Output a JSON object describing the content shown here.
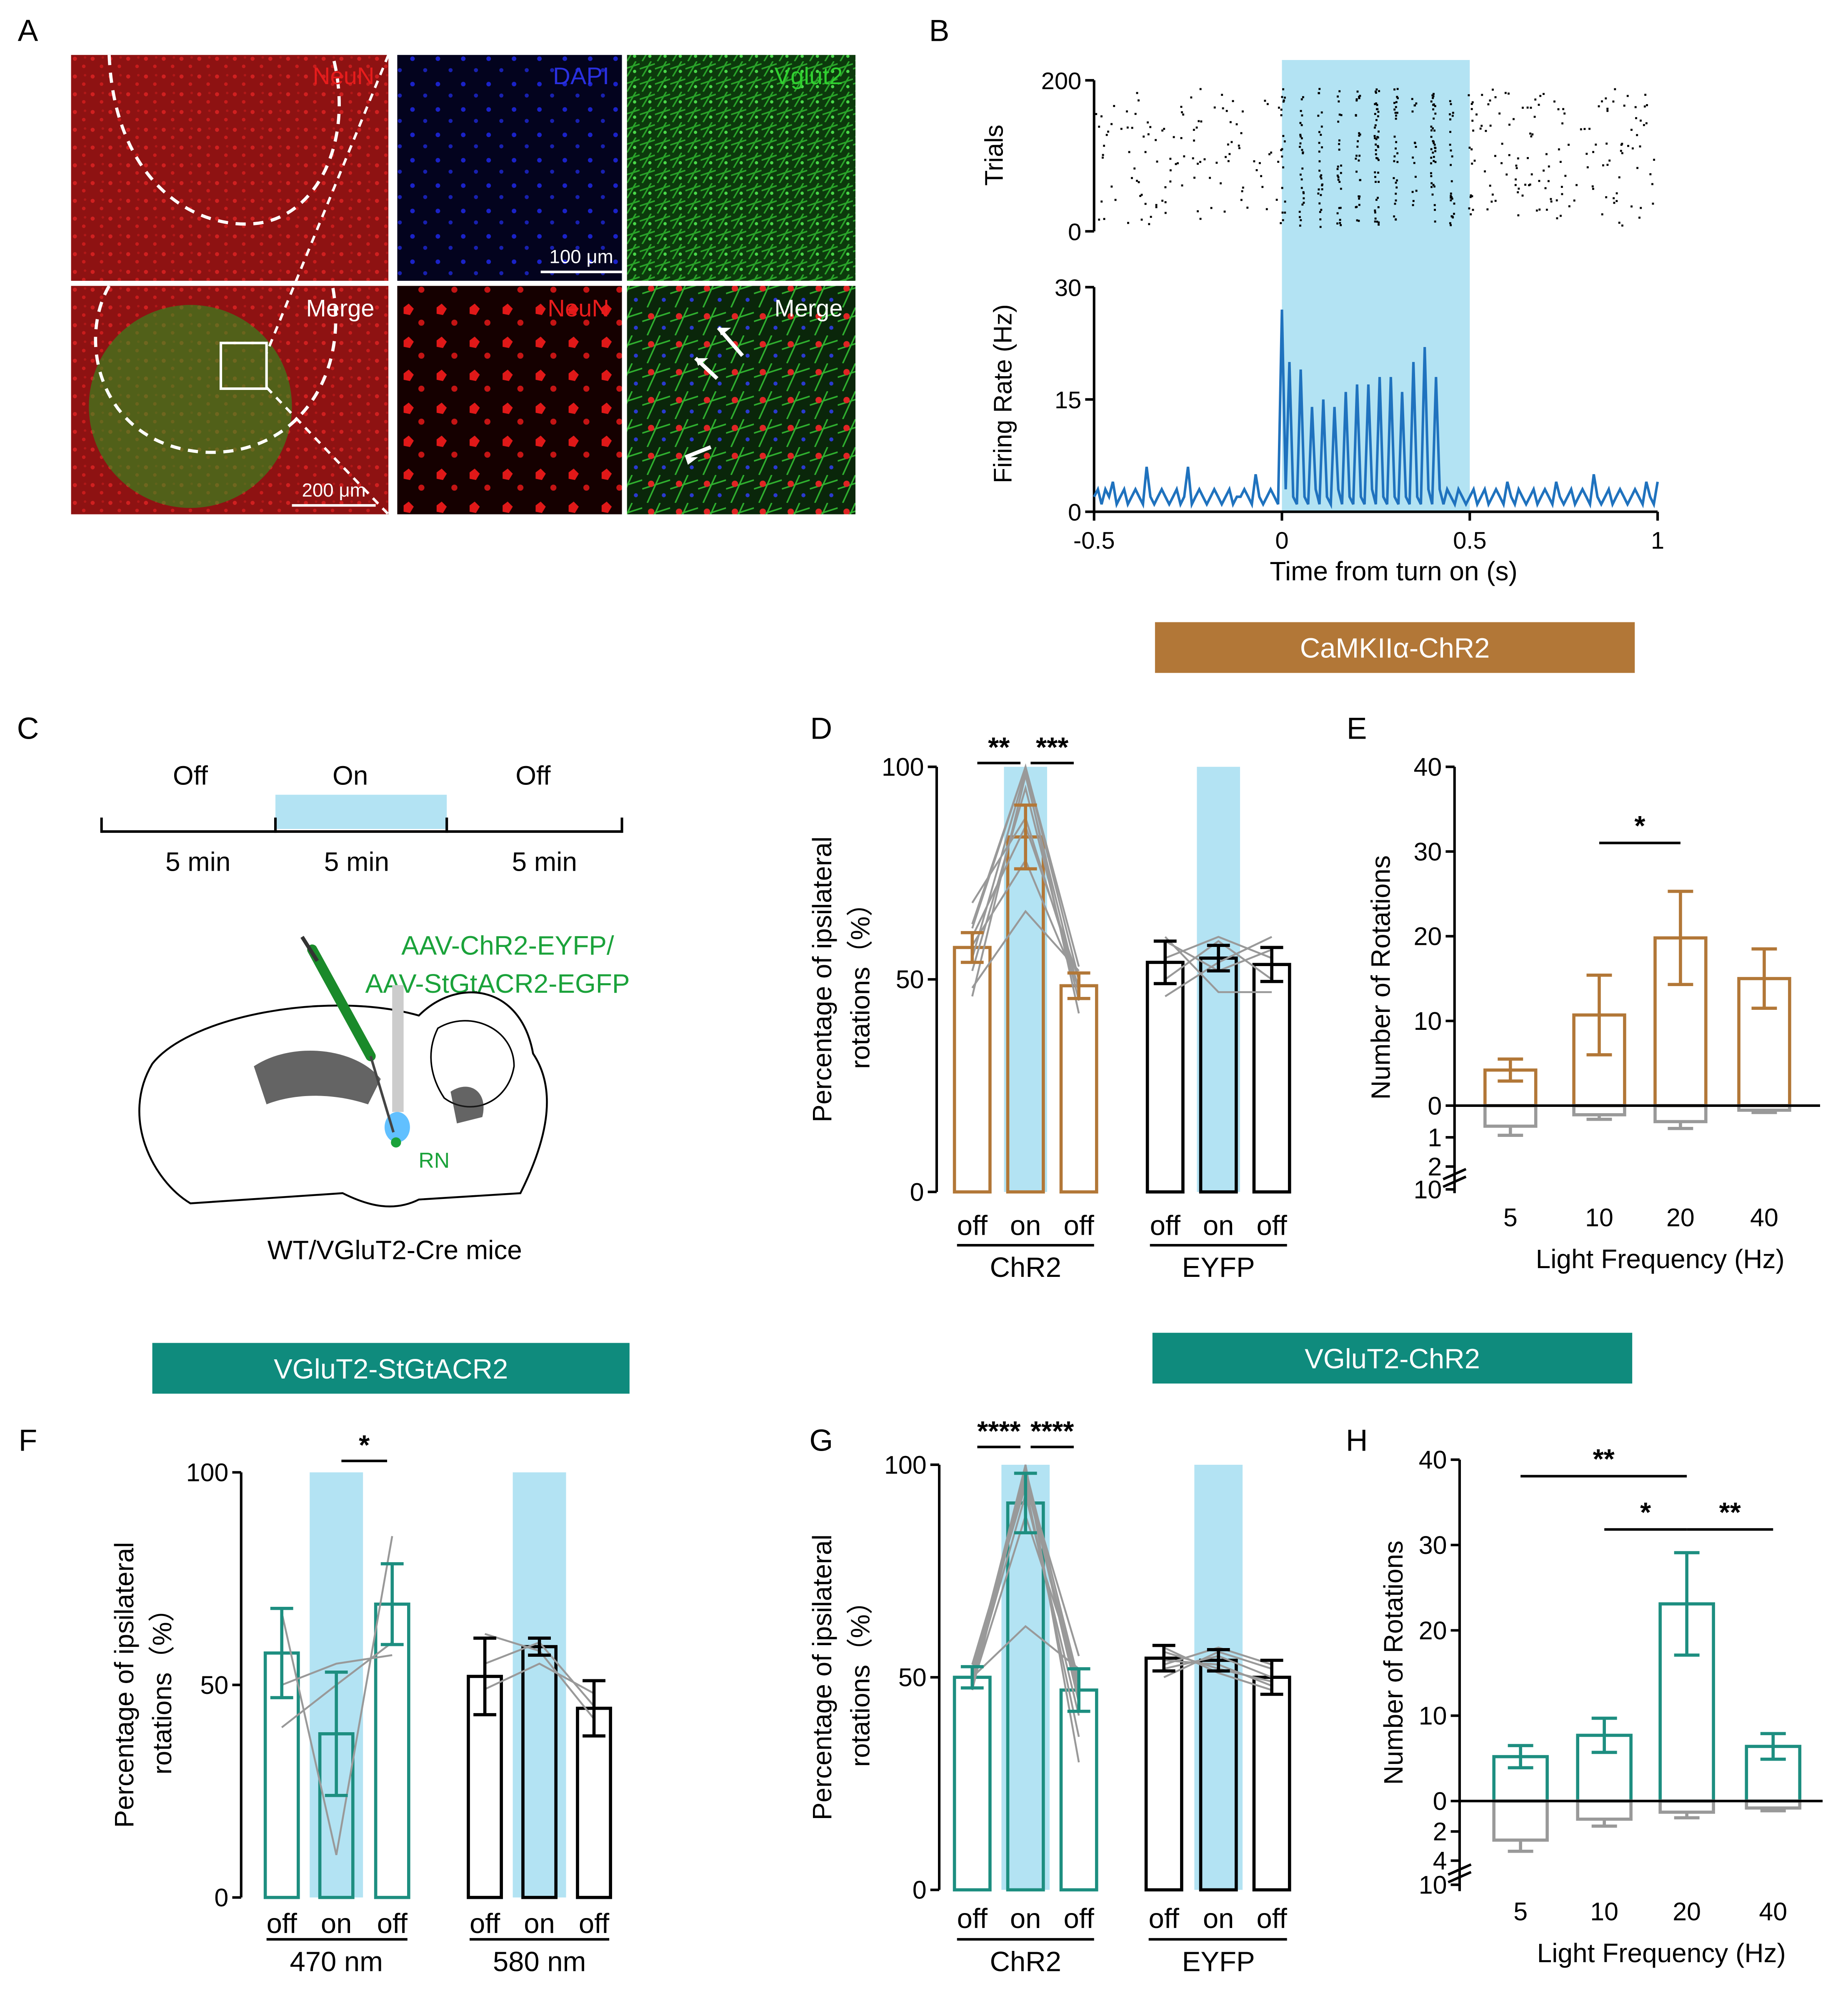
{
  "panel_letters": [
    "A",
    "B",
    "C",
    "D",
    "E",
    "F",
    "G",
    "H"
  ],
  "colors": {
    "brown": "#b27737",
    "teal": "#1d8e80",
    "grey": "#999999",
    "black": "#000000",
    "light_blue": "#b3e3f3",
    "trace_blue": "#1f72be",
    "banner_brown": "#b27737",
    "banner_teal": "#0f8b7d",
    "green_text": "#1aa23a",
    "arrow_white": "#ffffff"
  },
  "panel_a": {
    "labels": {
      "neun": "NeuN",
      "dapi": "DAPI",
      "vglut2": "Vglut2",
      "merge": "Merge"
    },
    "scale_bar_200": "200 μm",
    "scale_bar_100": "100 μm"
  },
  "banners": {
    "camkii": "CaMKIIα-ChR2",
    "vglut2_stgtacr2": "VGluT2-StGtACR2",
    "vglut2_chr2": "VGluT2-ChR2"
  },
  "panel_c": {
    "phases": [
      "Off",
      "On",
      "Off"
    ],
    "durations": [
      "5 min",
      "5 min",
      "5 min"
    ],
    "virus_line1": "AAV-ChR2-EYFP/",
    "virus_line2": "AAV-StGtACR2-EGFP",
    "region": "RN",
    "mice": "WT/VGluT2-Cre mice"
  },
  "chart_data": [
    {
      "panel": "B",
      "type": "line",
      "raster": {
        "ylabel": "Trials",
        "yticks": [
          "0",
          "200"
        ],
        "ylim": [
          0,
          200
        ]
      },
      "ylabel": "Firing Rate (Hz)",
      "xlabel": "Time from turn on (s)",
      "xticks": [
        "-0.5",
        "0",
        "0.5",
        "1"
      ],
      "yticks": [
        "0",
        "15",
        "30"
      ],
      "xlim": [
        -0.5,
        1.0
      ],
      "ylim": [
        0,
        30
      ],
      "light_on": [
        0,
        0.5
      ],
      "x": [
        -0.5,
        -0.49,
        -0.48,
        -0.47,
        -0.46,
        -0.45,
        -0.44,
        -0.43,
        -0.42,
        -0.41,
        -0.4,
        -0.39,
        -0.38,
        -0.37,
        -0.36,
        -0.35,
        -0.34,
        -0.33,
        -0.32,
        -0.31,
        -0.3,
        -0.29,
        -0.28,
        -0.27,
        -0.26,
        -0.25,
        -0.24,
        -0.23,
        -0.22,
        -0.21,
        -0.2,
        -0.19,
        -0.18,
        -0.17,
        -0.16,
        -0.15,
        -0.14,
        -0.13,
        -0.12,
        -0.11,
        -0.1,
        -0.09,
        -0.08,
        -0.07,
        -0.06,
        -0.05,
        -0.04,
        -0.03,
        -0.02,
        -0.01,
        0.0,
        0.01,
        0.02,
        0.03,
        0.04,
        0.05,
        0.06,
        0.07,
        0.08,
        0.09,
        0.1,
        0.11,
        0.12,
        0.13,
        0.14,
        0.15,
        0.16,
        0.17,
        0.18,
        0.19,
        0.2,
        0.21,
        0.22,
        0.23,
        0.24,
        0.25,
        0.26,
        0.27,
        0.28,
        0.29,
        0.3,
        0.31,
        0.32,
        0.33,
        0.34,
        0.35,
        0.36,
        0.37,
        0.38,
        0.39,
        0.4,
        0.41,
        0.42,
        0.43,
        0.44,
        0.45,
        0.46,
        0.47,
        0.48,
        0.49,
        0.5,
        0.51,
        0.52,
        0.53,
        0.54,
        0.55,
        0.56,
        0.57,
        0.58,
        0.59,
        0.6,
        0.61,
        0.62,
        0.63,
        0.64,
        0.65,
        0.66,
        0.67,
        0.68,
        0.69,
        0.7,
        0.71,
        0.72,
        0.73,
        0.74,
        0.75,
        0.76,
        0.77,
        0.78,
        0.79,
        0.8,
        0.81,
        0.82,
        0.83,
        0.84,
        0.85,
        0.86,
        0.87,
        0.88,
        0.89,
        0.9,
        0.91,
        0.92,
        0.93,
        0.94,
        0.95,
        0.96,
        0.97,
        0.98,
        0.99,
        1.0
      ],
      "y": [
        2,
        3,
        1,
        3,
        2,
        4,
        1,
        2,
        3,
        1,
        2,
        3,
        2,
        1,
        6,
        2,
        1,
        2,
        3,
        2,
        1,
        2,
        3,
        1,
        2,
        6,
        1,
        2,
        3,
        2,
        1,
        2,
        3,
        2,
        1,
        2,
        3,
        1,
        2,
        2,
        3,
        2,
        1,
        5,
        2,
        1,
        2,
        3,
        2,
        1,
        27,
        3,
        20,
        2,
        1,
        19,
        2,
        1,
        14,
        3,
        1,
        15,
        2,
        1,
        14,
        3,
        1,
        16,
        2,
        1,
        17,
        2,
        1,
        17,
        3,
        1,
        18,
        2,
        1,
        18,
        2,
        1,
        16,
        2,
        1,
        20,
        2,
        1,
        22,
        3,
        1,
        18,
        3,
        1,
        3,
        2,
        1,
        3,
        2,
        1,
        2,
        3,
        1,
        2,
        3,
        1,
        2,
        3,
        2,
        1,
        4,
        2,
        1,
        3,
        2,
        1,
        2,
        3,
        1,
        2,
        3,
        2,
        1,
        4,
        2,
        1,
        2,
        3,
        1,
        2,
        3,
        2,
        1,
        5,
        2,
        1,
        2,
        3,
        1,
        2,
        3,
        2,
        1,
        2,
        3,
        2,
        1,
        4,
        2,
        1,
        4
      ]
    },
    {
      "panel": "D",
      "type": "bar",
      "ylabel_line1": "Percentage of ipsilateral",
      "ylabel_line2": "rotations（%）",
      "yticks": [
        "0",
        "50",
        "100"
      ],
      "ylim": [
        0,
        100
      ],
      "categories": [
        "off",
        "on",
        "off",
        "off",
        "on",
        "off"
      ],
      "groups": [
        "ChR2",
        "EYFP"
      ],
      "values": [
        57.5,
        83.5,
        48.5,
        54,
        55,
        53.5
      ],
      "errors": [
        3.5,
        7.5,
        3,
        5,
        3,
        4
      ],
      "series_colors": [
        "brown",
        "brown",
        "brown",
        "black",
        "black",
        "black"
      ],
      "light_on": [
        1,
        4
      ],
      "individual_lines": [
        [
          52,
          62,
          68,
          48,
          55,
          58,
          63,
          60,
          46
        ],
        [
          95,
          100,
          88,
          66,
          99,
          78,
          100,
          86,
          98
        ],
        [
          45,
          50,
          48,
          52,
          42,
          48,
          53,
          50,
          47
        ]
      ],
      "individual_lines_eyfp": [
        [
          59,
          50,
          46,
          60,
          55
        ],
        [
          52,
          59,
          54,
          47,
          60
        ],
        [
          57,
          50,
          60,
          47,
          55
        ]
      ],
      "significance": [
        {
          "from": 0,
          "to": 1,
          "label": "**"
        },
        {
          "from": 1,
          "to": 2,
          "label": "***"
        }
      ]
    },
    {
      "panel": "E",
      "type": "bar",
      "ylabel": "Number of Rotations",
      "xlabel": "Light Frequency (Hz)",
      "categories": [
        "5",
        "10",
        "20",
        "40"
      ],
      "yticks_top": [
        "0",
        "10",
        "20",
        "30",
        "40"
      ],
      "yticks_bottom": [
        "1",
        "2",
        "10"
      ],
      "ylim": [
        0,
        40
      ],
      "series": [
        {
          "color": "brown",
          "values": [
            4.2,
            10.7,
            19.8,
            15
          ],
          "errors": [
            1.3,
            4.7,
            5.5,
            3.5
          ]
        },
        {
          "color": "grey",
          "values": [
            0.9,
            0.4,
            0.7,
            0.2
          ],
          "errors": [
            0.4,
            0.2,
            0.3,
            0.1
          ]
        }
      ],
      "significance": [
        {
          "from": 1,
          "to": 2,
          "label": "*"
        }
      ]
    },
    {
      "panel": "F",
      "type": "bar",
      "ylabel_line1": "Percentage of ipsilateral",
      "ylabel_line2": "rotations（%）",
      "yticks": [
        "0",
        "50",
        "100"
      ],
      "ylim": [
        0,
        100
      ],
      "categories": [
        "off",
        "on",
        "off",
        "off",
        "on",
        "off"
      ],
      "groups": [
        "470 nm",
        "580 nm"
      ],
      "values": [
        57.5,
        38.5,
        69,
        52,
        59,
        44.5
      ],
      "errors": [
        10.5,
        14.5,
        9.5,
        9,
        2,
        6.5
      ],
      "series_colors": [
        "teal",
        "teal",
        "teal",
        "black",
        "black",
        "black"
      ],
      "light_on": [
        1,
        4
      ],
      "individual_lines": [
        [
          67,
          40,
          50
        ],
        [
          10,
          50,
          55
        ],
        [
          85,
          60,
          57
        ]
      ],
      "individual_lines_eyfp": [
        [
          62,
          55,
          49
        ],
        [
          58,
          60,
          55
        ],
        [
          42,
          45,
          48
        ]
      ],
      "significance": [
        {
          "from": 1,
          "to": 2,
          "label": "*"
        }
      ]
    },
    {
      "panel": "G",
      "type": "bar",
      "ylabel_line1": "Percentage of ipsilateral",
      "ylabel_line2": "rotations（%）",
      "yticks": [
        "0",
        "50",
        "100"
      ],
      "ylim": [
        0,
        100
      ],
      "categories": [
        "off",
        "on",
        "off",
        "off",
        "on",
        "off"
      ],
      "groups": [
        "ChR2",
        "EYFP"
      ],
      "values": [
        50,
        91,
        47,
        54.5,
        54,
        50
      ],
      "errors": [
        2.5,
        7,
        5,
        3,
        2.5,
        4
      ],
      "series_colors": [
        "teal",
        "teal",
        "teal",
        "black",
        "black",
        "black"
      ],
      "light_on": [
        1,
        4
      ],
      "individual_lines": [
        [
          49,
          52,
          50,
          48,
          51,
          53,
          50,
          47,
          51,
          49
        ],
        [
          98,
          96,
          100,
          88,
          97,
          95,
          62,
          98,
          99,
          93
        ],
        [
          44,
          48,
          30,
          50,
          55,
          36,
          52,
          46,
          49,
          41
        ]
      ],
      "individual_lines_eyfp": [
        [
          56,
          50,
          54,
          52,
          57,
          53
        ],
        [
          52,
          56,
          53,
          55,
          51,
          57
        ],
        [
          49,
          52,
          48,
          50,
          47,
          53
        ]
      ],
      "significance": [
        {
          "from": 0,
          "to": 1,
          "label": "****"
        },
        {
          "from": 1,
          "to": 2,
          "label": "****"
        }
      ]
    },
    {
      "panel": "H",
      "type": "bar",
      "ylabel": "Number of Rotations",
      "xlabel": "Light Frequency (Hz)",
      "categories": [
        "5",
        "10",
        "20",
        "40"
      ],
      "yticks_top": [
        "0",
        "10",
        "20",
        "30",
        "40"
      ],
      "yticks_bottom": [
        "2",
        "4",
        "10"
      ],
      "ylim": [
        0,
        40
      ],
      "series": [
        {
          "color": "teal",
          "values": [
            5.2,
            7.7,
            23.1,
            6.4
          ],
          "errors": [
            1.3,
            2,
            6,
            1.5
          ]
        },
        {
          "color": "grey",
          "values": [
            2.8,
            1.3,
            0.8,
            0.5
          ],
          "errors": [
            0.8,
            0.5,
            0.4,
            0.2
          ]
        }
      ],
      "significance": [
        {
          "from": 0,
          "to": 2,
          "label": "**"
        },
        {
          "from": 1,
          "to": 2,
          "label": "*"
        },
        {
          "from": 2,
          "to": 3,
          "label": "**"
        }
      ]
    }
  ]
}
